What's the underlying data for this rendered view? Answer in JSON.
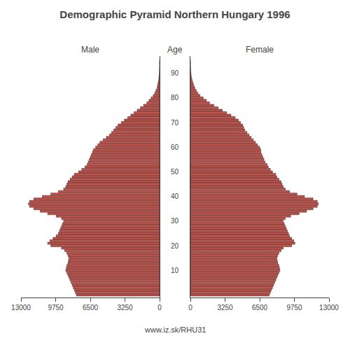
{
  "chart_data": {
    "type": "bar",
    "orientation": "horizontal",
    "title": "Demographic Pyramid Northern Hungary 1996",
    "ylabel": "Age",
    "annotations": [
      "www.iz.sk/RHU31"
    ],
    "y": [
      0,
      1,
      2,
      3,
      4,
      5,
      6,
      7,
      8,
      9,
      10,
      11,
      12,
      13,
      14,
      15,
      16,
      17,
      18,
      19,
      20,
      21,
      22,
      23,
      24,
      25,
      26,
      27,
      28,
      29,
      30,
      31,
      32,
      33,
      34,
      35,
      36,
      37,
      38,
      39,
      40,
      41,
      42,
      43,
      44,
      45,
      46,
      47,
      48,
      49,
      50,
      51,
      52,
      53,
      54,
      55,
      56,
      57,
      58,
      59,
      60,
      61,
      62,
      63,
      64,
      65,
      66,
      67,
      68,
      69,
      70,
      71,
      72,
      73,
      74,
      75,
      76,
      77,
      78,
      79,
      80,
      81,
      82,
      83,
      84,
      85,
      86,
      87,
      88,
      89,
      90,
      91,
      92,
      93,
      94,
      95
    ],
    "series": [
      {
        "name": "Male",
        "color": "#c8524a",
        "values": [
          7800,
          7900,
          8000,
          8100,
          8200,
          8300,
          8400,
          8500,
          8600,
          8700,
          8800,
          8750,
          8700,
          8600,
          8550,
          8500,
          8600,
          8700,
          8900,
          9200,
          10200,
          10500,
          10300,
          10000,
          9700,
          9500,
          9400,
          9300,
          9200,
          9100,
          9000,
          9200,
          9700,
          10500,
          11200,
          11800,
          12200,
          12300,
          12200,
          11800,
          11000,
          10200,
          9500,
          9000,
          8800,
          8700,
          8600,
          8400,
          8200,
          8000,
          7600,
          7300,
          7000,
          6800,
          6700,
          6600,
          6500,
          6400,
          6300,
          6200,
          6000,
          5800,
          5600,
          5300,
          5000,
          4700,
          4500,
          4300,
          4100,
          3900,
          3600,
          3300,
          3000,
          2700,
          2400,
          2100,
          1800,
          1500,
          1200,
          1000,
          800,
          600,
          450,
          350,
          250,
          200,
          150,
          100,
          70,
          50,
          30,
          20,
          10,
          5,
          3,
          1
        ]
      },
      {
        "name": "Female",
        "color": "#c8524a",
        "values": [
          7400,
          7500,
          7600,
          7700,
          7800,
          7900,
          8000,
          8100,
          8200,
          8300,
          8400,
          8350,
          8300,
          8200,
          8150,
          8100,
          8200,
          8300,
          8500,
          8700,
          9500,
          9800,
          9700,
          9500,
          9300,
          9200,
          9100,
          9000,
          8900,
          8800,
          8700,
          8900,
          9400,
          10200,
          10900,
          11500,
          11900,
          12000,
          11900,
          11500,
          10700,
          10000,
          9300,
          8900,
          8700,
          8600,
          8500,
          8300,
          8100,
          8000,
          7700,
          7500,
          7300,
          7200,
          7000,
          6900,
          6800,
          6700,
          6600,
          6600,
          6500,
          6300,
          6100,
          5900,
          5700,
          5500,
          5300,
          5100,
          5000,
          4900,
          4700,
          4500,
          4200,
          3800,
          3400,
          3000,
          2600,
          2200,
          1800,
          1500,
          1200,
          900,
          700,
          550,
          420,
          330,
          250,
          180,
          120,
          80,
          50,
          30,
          15,
          8,
          4,
          2
        ]
      }
    ],
    "xlim": [
      0,
      13000
    ],
    "xticks": [
      0,
      3250,
      6500,
      9750,
      13000
    ],
    "ylim": [
      -1,
      97
    ],
    "yticks": [
      10,
      20,
      30,
      40,
      50,
      60,
      70,
      80,
      90
    ],
    "grid": false
  }
}
